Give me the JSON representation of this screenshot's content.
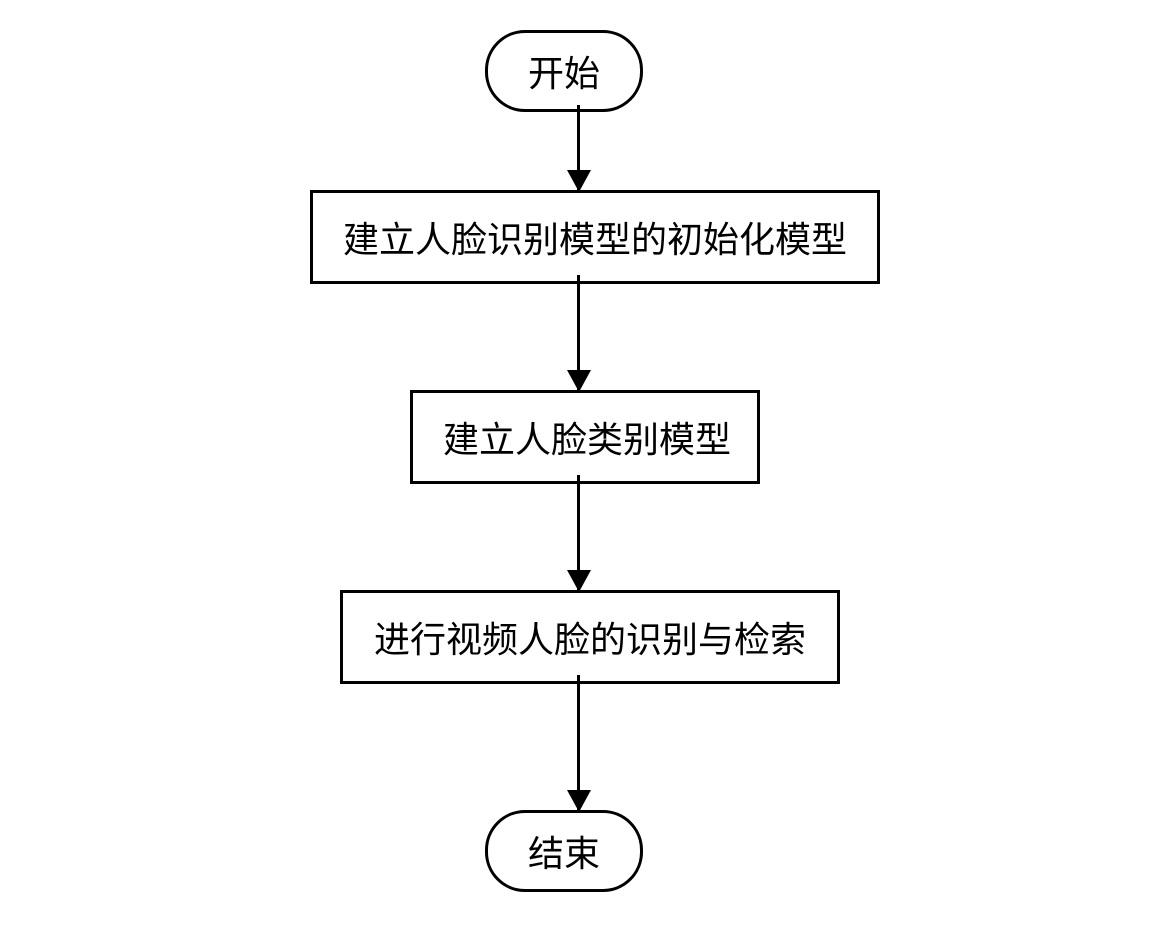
{
  "flowchart": {
    "type": "flowchart",
    "background_color": "#ffffff",
    "border_color": "#000000",
    "border_width": 3,
    "text_color": "#000000",
    "font_size": 36,
    "font_family": "SimSun",
    "nodes": {
      "start": {
        "type": "terminator",
        "label": "开始",
        "shape": "rounded-rect",
        "border_radius": 40
      },
      "step1": {
        "type": "process",
        "label": "建立人脸识别模型的初始化模型",
        "shape": "rect"
      },
      "step2": {
        "type": "process",
        "label": "建立人脸类别模型",
        "shape": "rect"
      },
      "step3": {
        "type": "process",
        "label": "进行视频人脸的识别与检索",
        "shape": "rect"
      },
      "end": {
        "type": "terminator",
        "label": "结束",
        "shape": "rounded-rect",
        "border_radius": 40
      }
    },
    "edges": [
      {
        "from": "start",
        "to": "step1",
        "arrow_length": 85
      },
      {
        "from": "step1",
        "to": "step2",
        "arrow_length": 115
      },
      {
        "from": "step2",
        "to": "step3",
        "arrow_length": 115
      },
      {
        "from": "step3",
        "to": "end",
        "arrow_length": 135
      }
    ],
    "arrow_style": {
      "line_width": 3,
      "head_width": 24,
      "head_height": 22,
      "color": "#000000"
    }
  }
}
